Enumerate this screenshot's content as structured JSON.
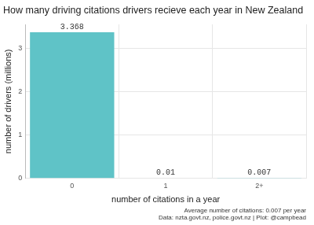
{
  "chart_data": {
    "type": "bar",
    "title": "How many driving citations drivers recieve each year in New Zealand",
    "x_label": "number of citations in a year",
    "y_label": "number of drivers (millions)",
    "categories": [
      "0",
      "1",
      "2+"
    ],
    "values": [
      3.368,
      0.01,
      0.007
    ],
    "color": "#5fc3c7",
    "ylim": [
      0,
      3.55
    ],
    "yticks": [
      0,
      1,
      2,
      3
    ],
    "grid": true,
    "data_labels": true,
    "annotations": [
      "Average number of citations: 0.007 per year",
      "Data: nzta.govt.nz, police.govt.nz | Plot: @campbead"
    ]
  }
}
